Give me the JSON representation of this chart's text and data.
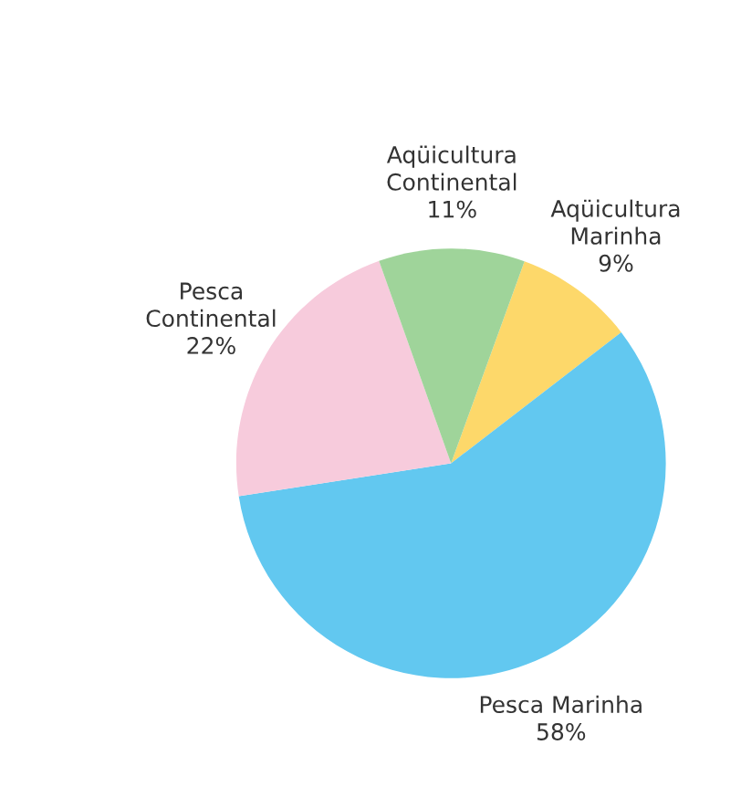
{
  "chart_data": {
    "type": "pie",
    "categories": [
      "Aqüicultura\nMarinha",
      "Pesca Marinha",
      "Pesca\nContinental",
      "Aqüicultura\nContinental"
    ],
    "values": [
      9,
      58,
      22,
      11
    ],
    "value_labels": [
      "9%",
      "58%",
      "22%",
      "11%"
    ],
    "colors": [
      "#fdd86a",
      "#62c8f0",
      "#f7cbdc",
      "#9fd49a"
    ]
  }
}
